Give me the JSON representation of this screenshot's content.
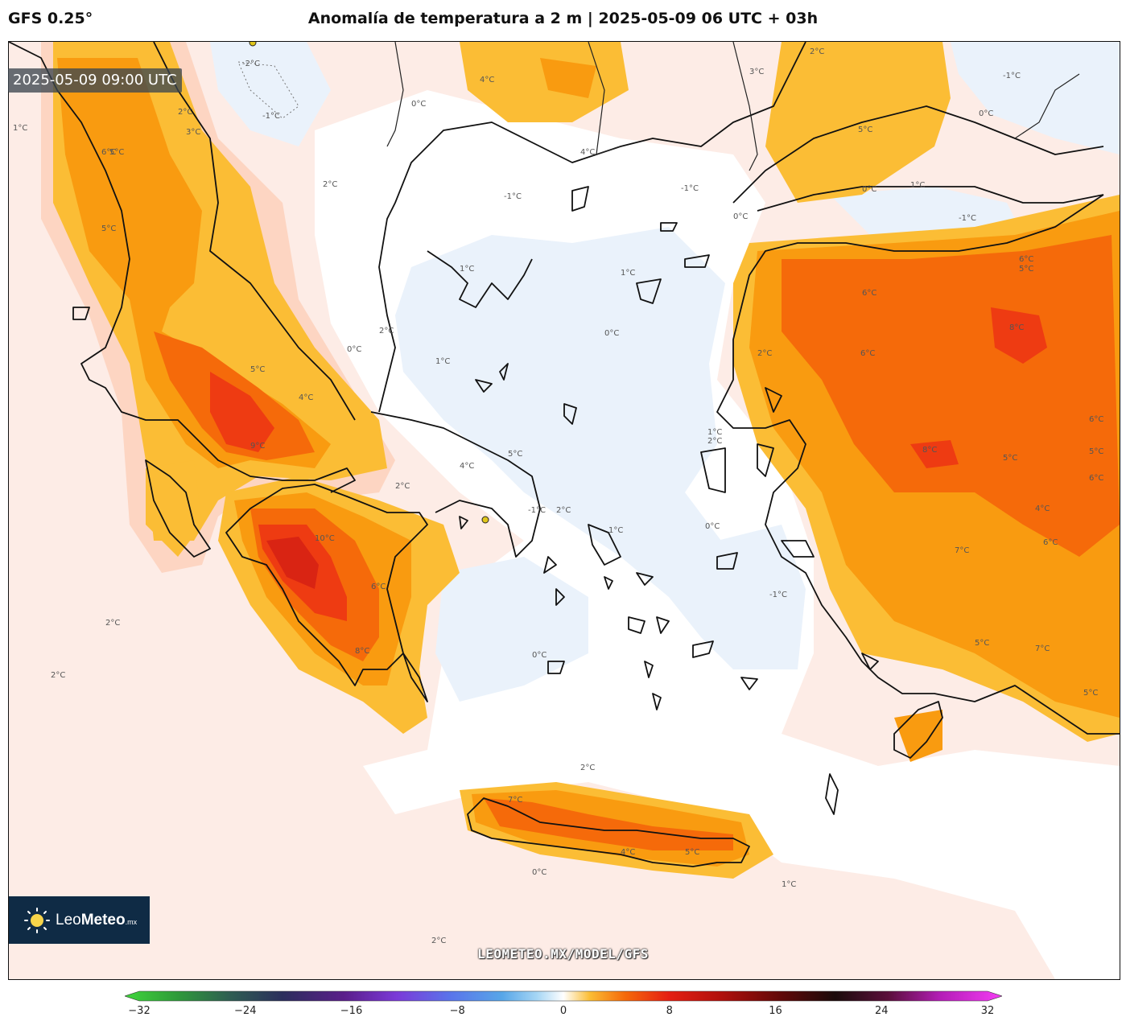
{
  "header": {
    "model": "GFS 0.25°",
    "title": "Anomalía de temperatura a 2 m | 2025-05-09 06 UTC + 03h"
  },
  "valid_time": "2025-05-09 09:00 UTC",
  "watermark": "LEOMETEO.MX/MODEL/GFS",
  "logo": {
    "brand_light": "Leo",
    "brand_bold": "Meteo",
    "suffix": ".mx"
  },
  "colorbar": {
    "min": -32,
    "max": 32,
    "ticks": [
      "−32",
      "−24",
      "−16",
      "−8",
      "0",
      "8",
      "16",
      "24",
      "32"
    ],
    "tick_values": [
      -32,
      -24,
      -16,
      -8,
      0,
      8,
      16,
      24,
      32
    ]
  },
  "colors": {
    "warm_1": "#fde8e1",
    "warm_2": "#fdd5c2",
    "warm_3": "#fbbd35",
    "warm_4": "#f99b10",
    "warm_5": "#f56a0a",
    "warm_6": "#ee3b12",
    "cool_1": "#e6f0fb"
  },
  "contour_labels": [
    "-2°C",
    "-1°C",
    "0°C",
    "1°C",
    "2°C",
    "3°C",
    "4°C",
    "5°C",
    "6°C",
    "7°C",
    "8°C",
    "9°C",
    "10°C"
  ]
}
